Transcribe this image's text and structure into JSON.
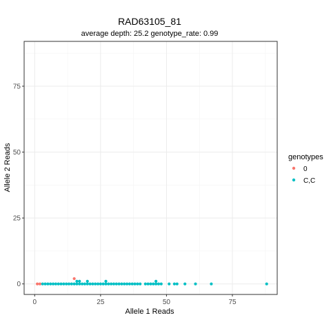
{
  "chart_data": {
    "type": "scatter",
    "title": "RAD63105_81",
    "subtitle": "average depth:  25.2  genotype_rate:  0.99",
    "xlabel": "Allele 1 Reads",
    "ylabel": "Allele 2 Reads",
    "xlim": [
      -4,
      92
    ],
    "ylim": [
      -4,
      92
    ],
    "xticks": [
      0,
      25,
      50,
      75
    ],
    "yticks": [
      0,
      25,
      50,
      75
    ],
    "grid": true,
    "legend": {
      "title": "genotypes",
      "placement": "right",
      "entries": [
        {
          "label": "0",
          "color": "#F8766D"
        },
        {
          "label": "C,C",
          "color": "#00BFC4"
        }
      ]
    },
    "series": [
      {
        "name": "0",
        "color": "#F8766D",
        "points": [
          [
            1,
            0
          ],
          [
            2,
            0
          ],
          [
            15,
            2
          ]
        ]
      },
      {
        "name": "C,C",
        "color": "#00BFC4",
        "points": [
          [
            3,
            0
          ],
          [
            4,
            0
          ],
          [
            5,
            0
          ],
          [
            6,
            0
          ],
          [
            7,
            0
          ],
          [
            8,
            0
          ],
          [
            9,
            0
          ],
          [
            10,
            0
          ],
          [
            11,
            0
          ],
          [
            12,
            0
          ],
          [
            13,
            0
          ],
          [
            14,
            0
          ],
          [
            15,
            0
          ],
          [
            16,
            0
          ],
          [
            16,
            1
          ],
          [
            17,
            0
          ],
          [
            17,
            1
          ],
          [
            18,
            0
          ],
          [
            19,
            0
          ],
          [
            20,
            0
          ],
          [
            20,
            1
          ],
          [
            21,
            0
          ],
          [
            22,
            0
          ],
          [
            23,
            0
          ],
          [
            24,
            0
          ],
          [
            25,
            0
          ],
          [
            26,
            0
          ],
          [
            27,
            0
          ],
          [
            27,
            1
          ],
          [
            28,
            0
          ],
          [
            29,
            0
          ],
          [
            30,
            0
          ],
          [
            31,
            0
          ],
          [
            32,
            0
          ],
          [
            33,
            0
          ],
          [
            34,
            0
          ],
          [
            35,
            0
          ],
          [
            36,
            0
          ],
          [
            37,
            0
          ],
          [
            38,
            0
          ],
          [
            39,
            0
          ],
          [
            40,
            0
          ],
          [
            42,
            0
          ],
          [
            43,
            0
          ],
          [
            44,
            0
          ],
          [
            45,
            0
          ],
          [
            46,
            0
          ],
          [
            46,
            1
          ],
          [
            47,
            0
          ],
          [
            48,
            0
          ],
          [
            51,
            0
          ],
          [
            53,
            0
          ],
          [
            54,
            0
          ],
          [
            57,
            0
          ],
          [
            61,
            0
          ],
          [
            67,
            0
          ],
          [
            88,
            0
          ]
        ]
      }
    ]
  }
}
